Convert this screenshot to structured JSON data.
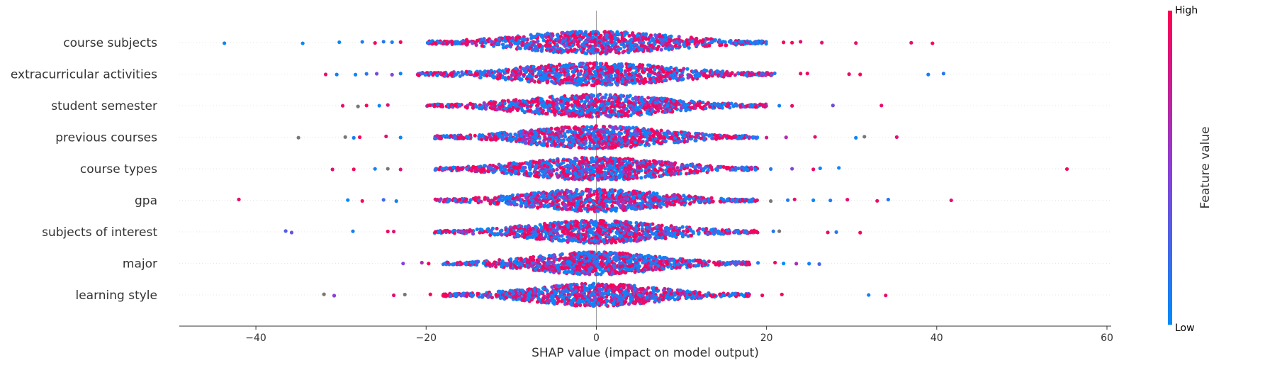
{
  "chart_data": {
    "type": "beeswarm",
    "title": "",
    "xlabel": "SHAP value (impact on model output)",
    "xlim": [
      -49,
      60.5
    ],
    "xticks": [
      -40,
      -20,
      0,
      20,
      40,
      60
    ],
    "xtick_labels": [
      "−40",
      "−20",
      "0",
      "20",
      "40",
      "60"
    ],
    "features": [
      {
        "name": "course subjects",
        "core_halfwidth": 20,
        "spread": 8.5,
        "outliers": [
          -43.7,
          -34.5,
          -30.2,
          -27.5,
          -26,
          -25,
          -24,
          -23,
          22,
          23,
          24,
          26.5,
          30.5,
          37,
          39.5
        ]
      },
      {
        "name": "extracurricular activities",
        "core_halfwidth": 21,
        "spread": 8.5,
        "outliers": [
          -31.8,
          -30.5,
          -28.3,
          -27,
          -25.8,
          -24,
          -23,
          24,
          24.8,
          29.7,
          31,
          39,
          40.8
        ]
      },
      {
        "name": "student semester",
        "core_halfwidth": 20,
        "spread": 8.0,
        "outliers": [
          -29.8,
          -28,
          -27,
          -25.5,
          -24.5,
          21.5,
          23,
          27.8,
          33.5
        ]
      },
      {
        "name": "previous courses",
        "core_halfwidth": 19,
        "spread": 7.5,
        "outliers": [
          -35,
          -29.5,
          -28.5,
          -27.8,
          -24.7,
          -23,
          18,
          20,
          22.3,
          25.7,
          30.5,
          31.5,
          35.3
        ]
      },
      {
        "name": "course types",
        "core_halfwidth": 19,
        "spread": 8.0,
        "outliers": [
          -31,
          -28.5,
          -26,
          -24.5,
          -23,
          20.5,
          23,
          25.5,
          26.3,
          28.5,
          55.3
        ]
      },
      {
        "name": "gpa",
        "core_halfwidth": 19,
        "spread": 7.5,
        "outliers": [
          -42,
          -29.2,
          -27.5,
          -25,
          -23.5,
          20.5,
          22.5,
          23.3,
          25.5,
          27.5,
          29.5,
          33,
          34.3,
          41.7
        ]
      },
      {
        "name": "subjects of interest",
        "core_halfwidth": 19,
        "spread": 7.5,
        "outliers": [
          -36.5,
          -35.8,
          -28.6,
          -24.5,
          -23.8,
          20.8,
          21.5,
          27.2,
          28.2,
          31
        ]
      },
      {
        "name": "major",
        "core_halfwidth": 18,
        "spread": 7.0,
        "outliers": [
          -22.7,
          -20.5,
          -19.7,
          19,
          21,
          22,
          23.5,
          25,
          26.2
        ]
      },
      {
        "name": "learning style",
        "core_halfwidth": 18,
        "spread": 7.0,
        "outliers": [
          -32,
          -30.8,
          -23.8,
          -22.5,
          -19.5,
          -18,
          19.5,
          21.8,
          32,
          34
        ]
      }
    ],
    "colorbar": {
      "label": "Feature value",
      "high_label": "High",
      "low_label": "Low",
      "low_color": "#008bfb",
      "mid_color": "#8b3fd6",
      "high_color": "#ff0052"
    },
    "missing_value_color": "#777777",
    "gridlines": true,
    "legend": "right"
  }
}
